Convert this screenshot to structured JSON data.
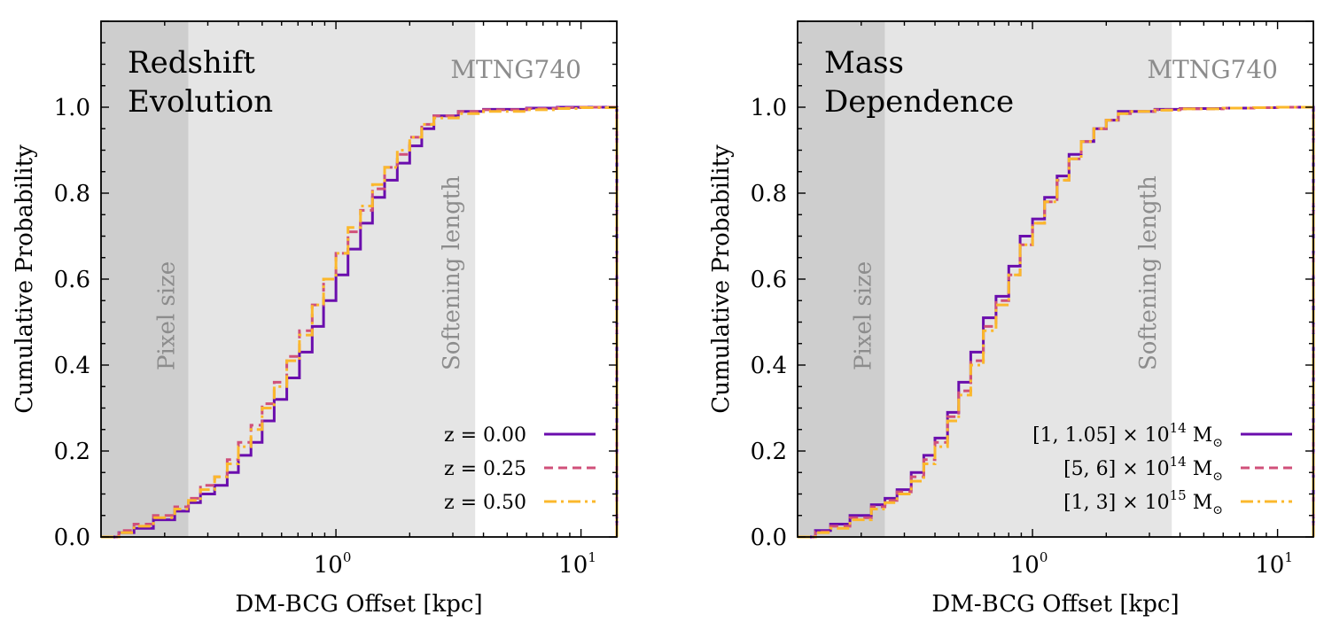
{
  "chart_data": [
    {
      "type": "line",
      "title": [
        "Redshift",
        "Evolution"
      ],
      "simulation_label": "MTNG740",
      "xlabel": "DM-BCG Offset [kpc]",
      "ylabel": "Cumulative Probability",
      "xscale": "log",
      "xlim": [
        0.11,
        14
      ],
      "ylim": [
        0,
        1.2
      ],
      "yticks": [
        0.0,
        0.2,
        0.4,
        0.6,
        0.8,
        1.0
      ],
      "ytick_labels": [
        "0.0",
        "0.2",
        "0.4",
        "0.6",
        "0.8",
        "1.0"
      ],
      "xticks": [
        1,
        10
      ],
      "xtick_labels": [
        [
          "10",
          "0"
        ],
        [
          "10",
          "1"
        ]
      ],
      "regions": [
        {
          "label": "Pixel size",
          "x_range": [
            0.11,
            0.25
          ],
          "color": "#cecece"
        },
        {
          "label": "Softening length",
          "x_range": [
            0.25,
            3.7
          ],
          "color": "#e5e5e5"
        }
      ],
      "legend_position": "lower-right",
      "series": [
        {
          "name": "z = 0.00",
          "label_parts": {
            "text": "z = 0.00"
          },
          "color": "#6a0dad",
          "style": "solid",
          "x": [
            0.11,
            0.13,
            0.15,
            0.18,
            0.22,
            0.25,
            0.28,
            0.32,
            0.36,
            0.4,
            0.45,
            0.5,
            0.56,
            0.63,
            0.71,
            0.8,
            0.89,
            1.0,
            1.12,
            1.26,
            1.41,
            1.58,
            1.78,
            2.0,
            2.24,
            2.51,
            3.16,
            4.0,
            6.0,
            8.0,
            10.0,
            14.0
          ],
          "y": [
            0.0,
            0.01,
            0.02,
            0.04,
            0.06,
            0.08,
            0.1,
            0.12,
            0.15,
            0.19,
            0.22,
            0.27,
            0.32,
            0.37,
            0.43,
            0.49,
            0.55,
            0.61,
            0.67,
            0.73,
            0.79,
            0.83,
            0.87,
            0.91,
            0.95,
            0.98,
            0.99,
            0.995,
            0.998,
            1.0,
            1.0,
            1.0
          ]
        },
        {
          "name": "z = 0.25",
          "label_parts": {
            "text": "z = 0.25"
          },
          "color": "#d0507a",
          "style": "dashed",
          "x": [
            0.11,
            0.13,
            0.15,
            0.18,
            0.22,
            0.25,
            0.28,
            0.32,
            0.36,
            0.4,
            0.45,
            0.5,
            0.56,
            0.63,
            0.71,
            0.8,
            0.89,
            1.0,
            1.12,
            1.26,
            1.41,
            1.58,
            1.78,
            2.0,
            2.24,
            2.51,
            3.16,
            4.0,
            6.0,
            8.0,
            10.0,
            14.0
          ],
          "y": [
            0.0,
            0.015,
            0.03,
            0.05,
            0.07,
            0.09,
            0.12,
            0.14,
            0.18,
            0.22,
            0.26,
            0.31,
            0.36,
            0.42,
            0.48,
            0.54,
            0.6,
            0.66,
            0.71,
            0.76,
            0.81,
            0.86,
            0.89,
            0.93,
            0.96,
            0.98,
            0.99,
            0.994,
            0.997,
            0.999,
            1.0,
            1.0
          ]
        },
        {
          "name": "z = 0.50",
          "label_parts": {
            "text": "z = 0.50"
          },
          "color": "#fbb82c",
          "style": "dashdot",
          "x": [
            0.11,
            0.13,
            0.15,
            0.18,
            0.22,
            0.25,
            0.28,
            0.32,
            0.36,
            0.4,
            0.45,
            0.5,
            0.56,
            0.63,
            0.71,
            0.8,
            0.89,
            1.0,
            1.12,
            1.26,
            1.41,
            1.58,
            1.78,
            2.0,
            2.24,
            2.51,
            3.16,
            4.0,
            6.0,
            8.0,
            10.0,
            14.0
          ],
          "y": [
            0.0,
            0.01,
            0.025,
            0.045,
            0.065,
            0.085,
            0.11,
            0.14,
            0.17,
            0.21,
            0.25,
            0.3,
            0.35,
            0.41,
            0.47,
            0.54,
            0.6,
            0.66,
            0.72,
            0.77,
            0.82,
            0.86,
            0.9,
            0.93,
            0.96,
            0.975,
            0.985,
            0.99,
            0.994,
            0.997,
            0.999,
            1.0
          ]
        }
      ]
    },
    {
      "type": "line",
      "title": [
        "Mass",
        "Dependence"
      ],
      "simulation_label": "MTNG740",
      "xlabel": "DM-BCG Offset [kpc]",
      "ylabel": "Cumulative Probability",
      "xscale": "log",
      "xlim": [
        0.11,
        14
      ],
      "ylim": [
        0,
        1.2
      ],
      "yticks": [
        0.0,
        0.2,
        0.4,
        0.6,
        0.8,
        1.0
      ],
      "ytick_labels": [
        "0.0",
        "0.2",
        "0.4",
        "0.6",
        "0.8",
        "1.0"
      ],
      "xticks": [
        1,
        10
      ],
      "xtick_labels": [
        [
          "10",
          "0"
        ],
        [
          "10",
          "1"
        ]
      ],
      "regions": [
        {
          "label": "Pixel size",
          "x_range": [
            0.11,
            0.25
          ],
          "color": "#cecece"
        },
        {
          "label": "Softening length",
          "x_range": [
            0.25,
            3.7
          ],
          "color": "#e5e5e5"
        }
      ],
      "legend_position": "lower-right",
      "series": [
        {
          "name": "[1, 1.05] × 10^14 M⊙",
          "label_parts": {
            "text": "[1, 1.05] × 10",
            "sup": "14",
            "unit": " M",
            "sub": "⊙"
          },
          "color": "#6a0dad",
          "style": "solid",
          "x": [
            0.11,
            0.13,
            0.15,
            0.18,
            0.22,
            0.25,
            0.28,
            0.32,
            0.36,
            0.4,
            0.45,
            0.5,
            0.56,
            0.63,
            0.71,
            0.8,
            0.89,
            1.0,
            1.12,
            1.26,
            1.41,
            1.58,
            1.78,
            2.0,
            2.24,
            2.51,
            3.16,
            4.0,
            6.0,
            8.0,
            10.0,
            14.0
          ],
          "y": [
            0.0,
            0.015,
            0.03,
            0.05,
            0.075,
            0.09,
            0.11,
            0.15,
            0.19,
            0.23,
            0.29,
            0.36,
            0.43,
            0.51,
            0.56,
            0.63,
            0.7,
            0.74,
            0.79,
            0.84,
            0.89,
            0.92,
            0.95,
            0.97,
            0.99,
            0.99,
            0.995,
            0.997,
            0.998,
            0.999,
            1.0,
            1.0
          ]
        },
        {
          "name": "[5, 6] × 10^14 M⊙",
          "label_parts": {
            "text": "[5, 6] × 10",
            "sup": "14",
            "unit": " M",
            "sub": "⊙"
          },
          "color": "#d0507a",
          "style": "dashed",
          "x": [
            0.11,
            0.13,
            0.15,
            0.18,
            0.22,
            0.25,
            0.28,
            0.32,
            0.36,
            0.4,
            0.45,
            0.5,
            0.56,
            0.63,
            0.71,
            0.8,
            0.89,
            1.0,
            1.12,
            1.26,
            1.41,
            1.58,
            1.78,
            2.0,
            2.24,
            2.51,
            3.16,
            4.0,
            6.0,
            8.0,
            10.0,
            14.0
          ],
          "y": [
            0.0,
            0.012,
            0.025,
            0.045,
            0.07,
            0.085,
            0.105,
            0.14,
            0.18,
            0.22,
            0.28,
            0.34,
            0.41,
            0.49,
            0.55,
            0.61,
            0.68,
            0.73,
            0.78,
            0.83,
            0.88,
            0.92,
            0.95,
            0.97,
            0.985,
            0.99,
            0.994,
            0.996,
            0.998,
            0.999,
            1.0,
            1.0
          ]
        },
        {
          "name": "[1, 3] × 10^15 M⊙",
          "label_parts": {
            "text": "[1, 3] × 10",
            "sup": "15",
            "unit": " M",
            "sub": "⊙"
          },
          "color": "#fbb82c",
          "style": "dashdot",
          "x": [
            0.11,
            0.13,
            0.15,
            0.18,
            0.22,
            0.25,
            0.28,
            0.32,
            0.36,
            0.4,
            0.45,
            0.5,
            0.56,
            0.63,
            0.71,
            0.8,
            0.89,
            1.0,
            1.12,
            1.26,
            1.41,
            1.58,
            1.78,
            2.0,
            2.24,
            2.51,
            3.16,
            4.0,
            6.0,
            8.0,
            10.0,
            14.0
          ],
          "y": [
            0.0,
            0.01,
            0.02,
            0.04,
            0.065,
            0.08,
            0.1,
            0.13,
            0.17,
            0.21,
            0.27,
            0.33,
            0.4,
            0.48,
            0.54,
            0.61,
            0.68,
            0.73,
            0.78,
            0.83,
            0.88,
            0.92,
            0.95,
            0.97,
            0.985,
            0.99,
            0.993,
            0.996,
            0.998,
            0.999,
            1.0,
            1.0
          ]
        }
      ]
    }
  ]
}
